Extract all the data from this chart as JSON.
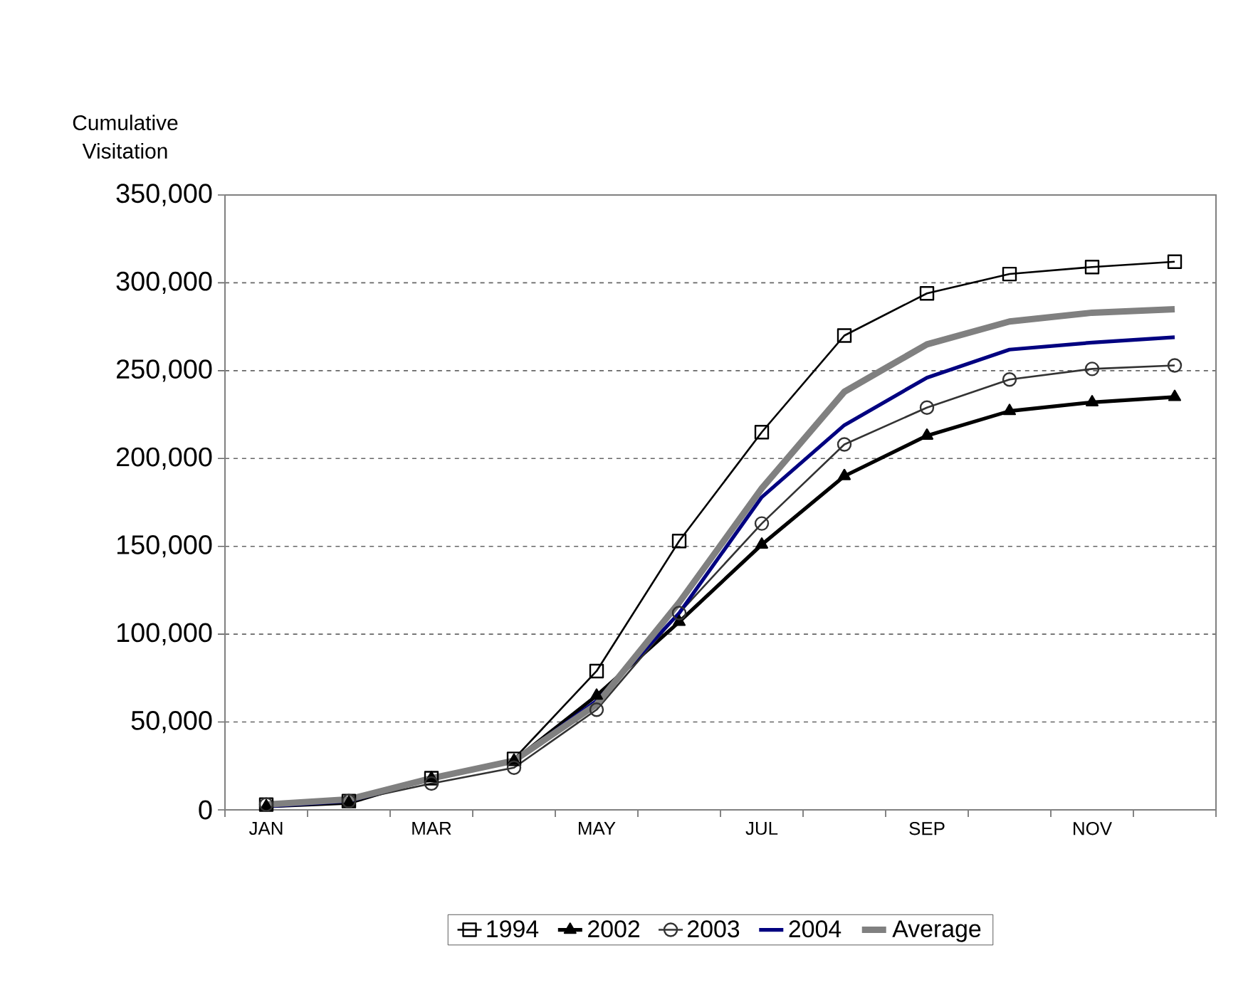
{
  "chart_data": {
    "type": "line",
    "ylabel": "Cumulative Visitation",
    "categories": [
      "JAN",
      null,
      "MAR",
      null,
      "MAY",
      null,
      "JUL",
      null,
      "SEP",
      null,
      "NOV",
      null
    ],
    "series": [
      {
        "name": "1994",
        "color": "#000000",
        "marker": "square",
        "values": [
          3000,
          5000,
          18000,
          29000,
          79000,
          153000,
          215000,
          270000,
          294000,
          305000,
          309000,
          312000
        ]
      },
      {
        "name": "2002",
        "color": "#000000",
        "marker": "triangle",
        "values": [
          2000,
          4000,
          18000,
          28000,
          65000,
          107000,
          151000,
          190000,
          213000,
          227000,
          232000,
          235000
        ]
      },
      {
        "name": "2003",
        "color": "#333333",
        "marker": "circle",
        "values": [
          3000,
          5000,
          15000,
          24000,
          57000,
          112000,
          163000,
          208000,
          229000,
          245000,
          251000,
          253000
        ]
      },
      {
        "name": "2004",
        "color": "#000080",
        "marker": "none",
        "values": [
          2000,
          5000,
          18000,
          28000,
          62000,
          112000,
          178000,
          219000,
          246000,
          262000,
          266000,
          269000
        ]
      },
      {
        "name": "Average",
        "color": "#808080",
        "marker": "none",
        "values": [
          3000,
          6000,
          18000,
          28000,
          60000,
          118000,
          183000,
          238000,
          265000,
          278000,
          283000,
          285000
        ]
      }
    ],
    "ylim": [
      0,
      350000
    ],
    "yticks": [
      0,
      {
        "value": 50000,
        "label": "50,000"
      },
      {
        "value": 100000,
        "label": "100,000"
      },
      {
        "value": 150000,
        "label": "150,000"
      },
      {
        "value": 200000,
        "label": "200,000"
      },
      {
        "value": 250000,
        "label": "250,000"
      },
      {
        "value": 300000,
        "label": "300,000"
      },
      {
        "value": 350000,
        "label": "350,000"
      }
    ],
    "grid": "y",
    "legend": "bottom"
  }
}
